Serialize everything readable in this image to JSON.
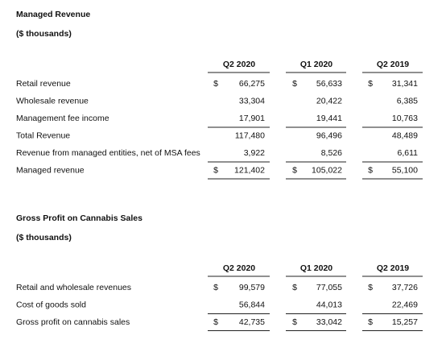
{
  "sections": [
    {
      "title": "Managed Revenue",
      "subtitle": "($ thousands)",
      "columns": [
        "Q2 2020",
        "Q1 2020",
        "Q2 2019"
      ],
      "rows": [
        {
          "label": "Retail revenue",
          "currency": [
            "$",
            "$",
            "$"
          ],
          "values": [
            "66,275",
            "56,633",
            "31,341"
          ]
        },
        {
          "label": "Wholesale revenue",
          "values": [
            "33,304",
            "20,422",
            "6,385"
          ]
        },
        {
          "label": "Management fee income",
          "values": [
            "17,901",
            "19,441",
            "10,763"
          ]
        },
        {
          "label": "Total Revenue",
          "values": [
            "117,480",
            "96,496",
            "48,489"
          ]
        },
        {
          "label": "Revenue from managed entities, net of MSA fees",
          "values": [
            "3,922",
            "8,526",
            "6,611"
          ]
        },
        {
          "label": "Managed revenue",
          "currency": [
            "$",
            "$",
            "$"
          ],
          "values": [
            "121,402",
            "105,022",
            "55,100"
          ]
        }
      ]
    },
    {
      "title": "Gross Profit on Cannabis Sales",
      "subtitle": "($ thousands)",
      "columns": [
        "Q2 2020",
        "Q1 2020",
        "Q2 2019"
      ],
      "rows": [
        {
          "label": "Retail and wholesale revenues",
          "currency": [
            "$",
            "$",
            "$"
          ],
          "values": [
            "99,579",
            "77,055",
            "37,726"
          ]
        },
        {
          "label": "Cost of goods sold",
          "values": [
            "56,844",
            "44,013",
            "22,469"
          ]
        },
        {
          "label": "Gross profit on cannabis sales",
          "currency": [
            "$",
            "$",
            "$"
          ],
          "values": [
            "42,735",
            "33,042",
            "15,257"
          ]
        }
      ]
    }
  ]
}
